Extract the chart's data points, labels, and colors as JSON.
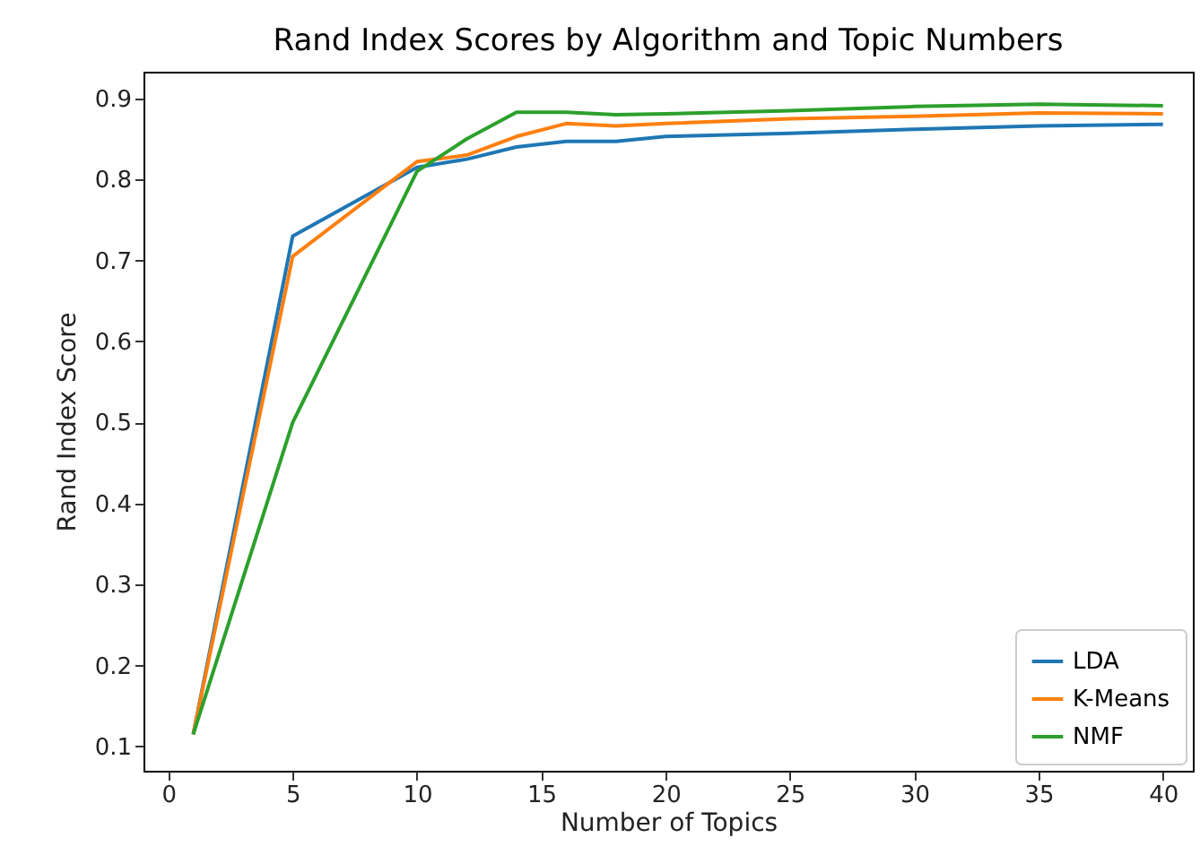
{
  "chart_data": {
    "type": "line",
    "title": "Rand Index Scores by Algorithm and Topic Numbers",
    "xlabel": "Number of Topics",
    "ylabel": "Rand Index Score",
    "x": [
      1,
      5,
      10,
      12,
      14,
      16,
      18,
      20,
      25,
      30,
      35,
      40
    ],
    "series": [
      {
        "name": "LDA",
        "color": "#1f77b4",
        "values": [
          0.115,
          0.73,
          0.815,
          0.825,
          0.84,
          0.847,
          0.847,
          0.853,
          0.857,
          0.862,
          0.866,
          0.868
        ]
      },
      {
        "name": "K-Means",
        "color": "#ff7f0e",
        "values": [
          0.115,
          0.705,
          0.822,
          0.83,
          0.853,
          0.869,
          0.866,
          0.869,
          0.875,
          0.878,
          0.882,
          0.881
        ]
      },
      {
        "name": "NMF",
        "color": "#2ca02c",
        "values": [
          0.115,
          0.5,
          0.81,
          0.85,
          0.883,
          0.883,
          0.88,
          0.881,
          0.885,
          0.89,
          0.893,
          0.891
        ]
      }
    ],
    "xlim": [
      -1,
      41.2
    ],
    "xticks": [
      0,
      5,
      10,
      15,
      20,
      25,
      30,
      35,
      40
    ],
    "ylim": [
      0.07,
      0.933
    ],
    "yticks": [
      0.1,
      0.2,
      0.3,
      0.4,
      0.5,
      0.6,
      0.7,
      0.8,
      0.9
    ],
    "grid": false,
    "legend": "bottom right",
    "marker": "none",
    "line_style": "solid"
  }
}
